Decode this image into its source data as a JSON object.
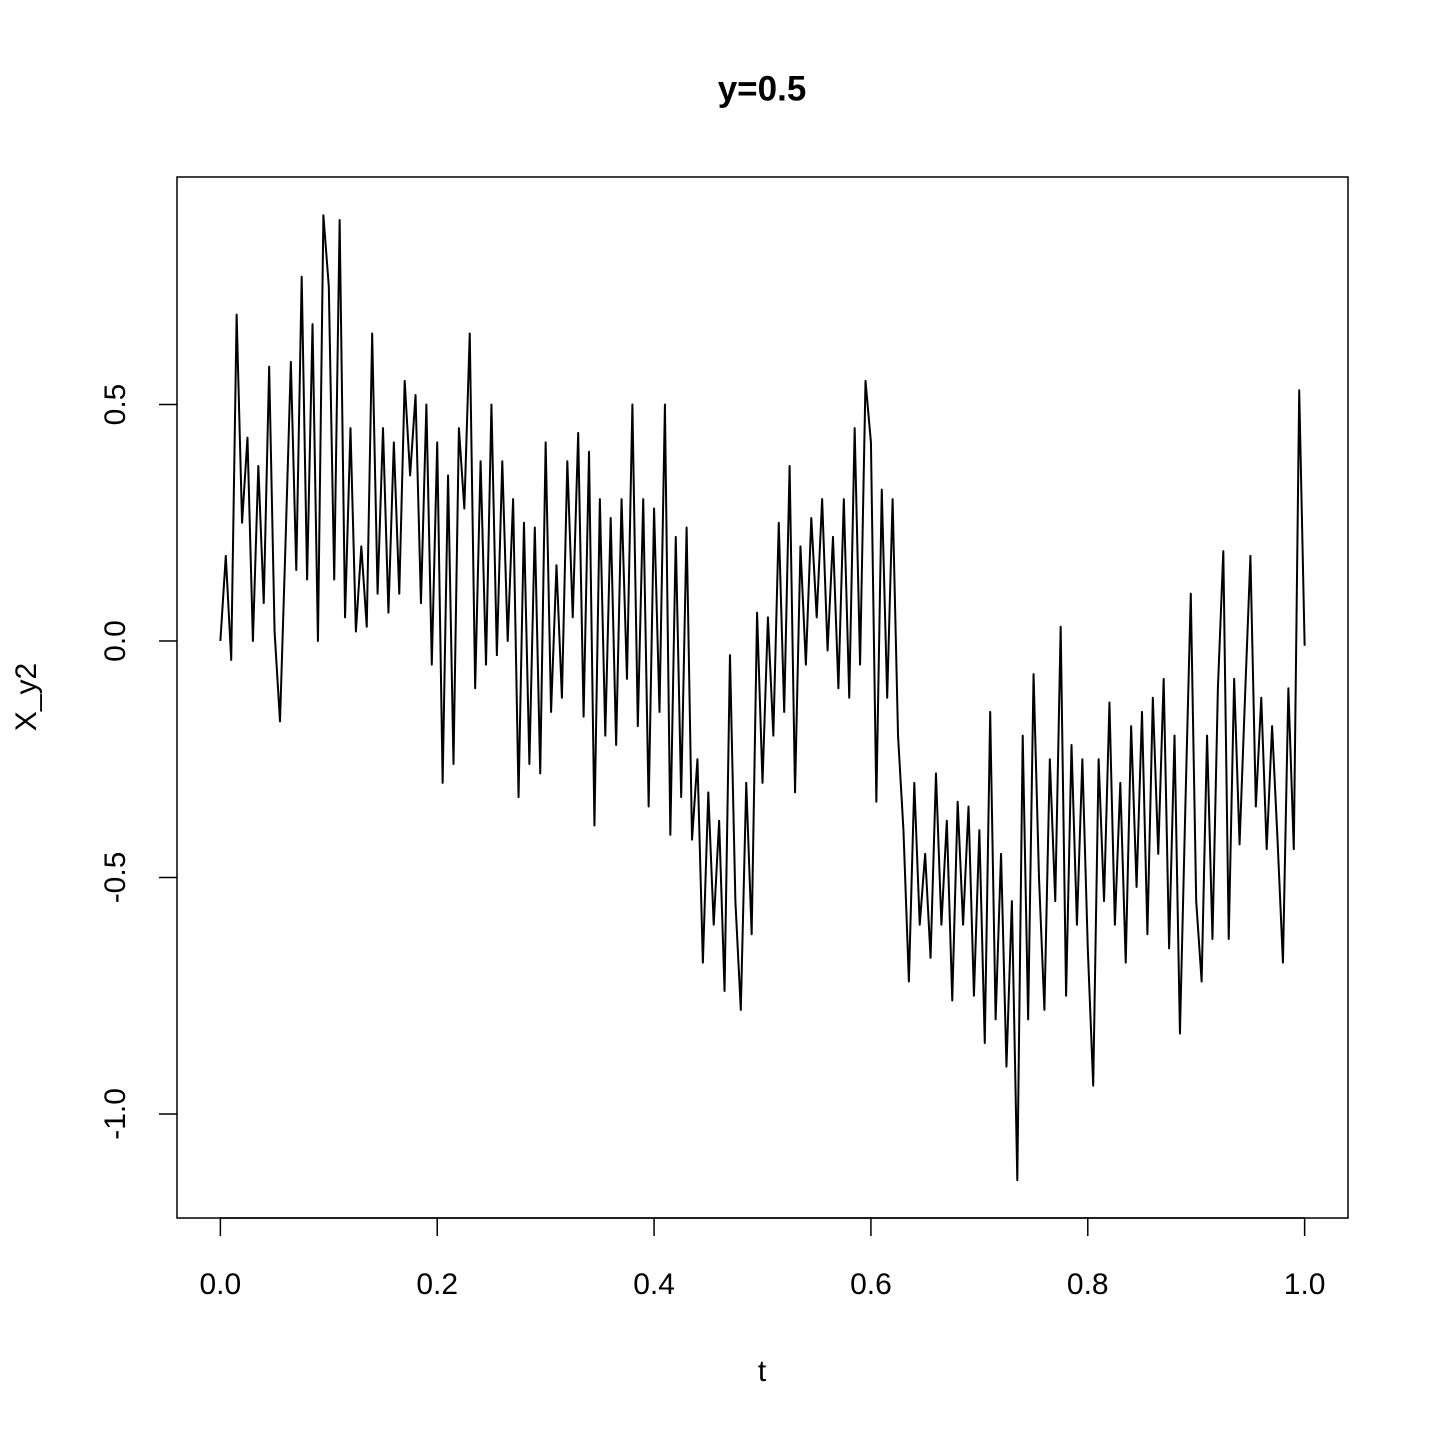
{
  "chart_data": {
    "type": "line",
    "title": "y=0.5",
    "x_label": "t",
    "y_label": "X_y2",
    "color": "#000000",
    "x": [
      0,
      0.005,
      0.01,
      0.015,
      0.02,
      0.025,
      0.03,
      0.035,
      0.04,
      0.045,
      0.05,
      0.055,
      0.06,
      0.065,
      0.07,
      0.075,
      0.08,
      0.085,
      0.09,
      0.095,
      0.1,
      0.105,
      0.11,
      0.115,
      0.12,
      0.125,
      0.13,
      0.135,
      0.14,
      0.145,
      0.15,
      0.155,
      0.16,
      0.165,
      0.17,
      0.175,
      0.18,
      0.185,
      0.19,
      0.195,
      0.2,
      0.205,
      0.21,
      0.215,
      0.22,
      0.225,
      0.23,
      0.235,
      0.24,
      0.245,
      0.25,
      0.255,
      0.26,
      0.265,
      0.27,
      0.275,
      0.28,
      0.285,
      0.29,
      0.295,
      0.3,
      0.305,
      0.31,
      0.315,
      0.32,
      0.325,
      0.33,
      0.335,
      0.34,
      0.345,
      0.35,
      0.355,
      0.36,
      0.365,
      0.37,
      0.375,
      0.38,
      0.385,
      0.39,
      0.395,
      0.4,
      0.405,
      0.41,
      0.415,
      0.42,
      0.425,
      0.43,
      0.435,
      0.44,
      0.445,
      0.45,
      0.455,
      0.46,
      0.465,
      0.47,
      0.475,
      0.48,
      0.485,
      0.49,
      0.495,
      0.5,
      0.505,
      0.51,
      0.515,
      0.52,
      0.525,
      0.53,
      0.535,
      0.54,
      0.545,
      0.55,
      0.555,
      0.56,
      0.565,
      0.57,
      0.575,
      0.58,
      0.585,
      0.59,
      0.595,
      0.6,
      0.605,
      0.61,
      0.615,
      0.62,
      0.625,
      0.63,
      0.635,
      0.64,
      0.645,
      0.65,
      0.655,
      0.66,
      0.665,
      0.67,
      0.675,
      0.68,
      0.685,
      0.69,
      0.695,
      0.7,
      0.705,
      0.71,
      0.715,
      0.72,
      0.725,
      0.73,
      0.735,
      0.74,
      0.745,
      0.75,
      0.755,
      0.76,
      0.765,
      0.77,
      0.775,
      0.78,
      0.785,
      0.79,
      0.795,
      0.8,
      0.805,
      0.81,
      0.815,
      0.82,
      0.825,
      0.83,
      0.835,
      0.84,
      0.845,
      0.85,
      0.855,
      0.86,
      0.865,
      0.87,
      0.875,
      0.88,
      0.885,
      0.89,
      0.895,
      0.9,
      0.905,
      0.91,
      0.915,
      0.92,
      0.925,
      0.93,
      0.935,
      0.94,
      0.945,
      0.95,
      0.955,
      0.96,
      0.965,
      0.97,
      0.975,
      0.98,
      0.985,
      0.99,
      0.995,
      1
    ],
    "values": [
      0,
      0.18,
      -0.04,
      0.69,
      0.25,
      0.43,
      0.0,
      0.37,
      0.08,
      0.58,
      0.02,
      -0.17,
      0.2,
      0.59,
      0.15,
      0.77,
      0.13,
      0.67,
      0.0,
      0.9,
      0.75,
      0.13,
      0.89,
      0.05,
      0.45,
      0.02,
      0.2,
      0.03,
      0.65,
      0.1,
      0.45,
      0.06,
      0.42,
      0.1,
      0.55,
      0.35,
      0.52,
      0.08,
      0.5,
      -0.05,
      0.42,
      -0.3,
      0.35,
      -0.26,
      0.45,
      0.28,
      0.65,
      -0.1,
      0.38,
      -0.05,
      0.5,
      -0.03,
      0.38,
      0.0,
      0.3,
      -0.33,
      0.25,
      -0.26,
      0.24,
      -0.28,
      0.42,
      -0.15,
      0.16,
      -0.12,
      0.38,
      0.05,
      0.44,
      -0.16,
      0.4,
      -0.39,
      0.3,
      -0.2,
      0.26,
      -0.22,
      0.3,
      -0.08,
      0.5,
      -0.18,
      0.3,
      -0.35,
      0.28,
      -0.15,
      0.5,
      -0.41,
      0.22,
      -0.33,
      0.24,
      -0.42,
      -0.25,
      -0.68,
      -0.32,
      -0.6,
      -0.38,
      -0.74,
      -0.03,
      -0.55,
      -0.78,
      -0.3,
      -0.62,
      0.06,
      -0.3,
      0.05,
      -0.2,
      0.25,
      -0.15,
      0.37,
      -0.32,
      0.2,
      -0.05,
      0.26,
      0.05,
      0.3,
      -0.02,
      0.22,
      -0.1,
      0.3,
      -0.12,
      0.45,
      -0.05,
      0.55,
      0.42,
      -0.34,
      0.32,
      -0.12,
      0.3,
      -0.2,
      -0.4,
      -0.72,
      -0.3,
      -0.6,
      -0.45,
      -0.67,
      -0.28,
      -0.6,
      -0.38,
      -0.76,
      -0.34,
      -0.6,
      -0.35,
      -0.75,
      -0.4,
      -0.85,
      -0.15,
      -0.8,
      -0.45,
      -0.9,
      -0.55,
      -1.14,
      -0.2,
      -0.8,
      -0.07,
      -0.5,
      -0.78,
      -0.25,
      -0.55,
      0.03,
      -0.75,
      -0.22,
      -0.6,
      -0.25,
      -0.65,
      -0.94,
      -0.25,
      -0.55,
      -0.13,
      -0.6,
      -0.3,
      -0.68,
      -0.18,
      -0.52,
      -0.15,
      -0.62,
      -0.12,
      -0.45,
      -0.08,
      -0.65,
      -0.2,
      -0.83,
      -0.35,
      0.1,
      -0.55,
      -0.72,
      -0.2,
      -0.63,
      -0.1,
      0.19,
      -0.63,
      -0.08,
      -0.43,
      -0.12,
      0.18,
      -0.35,
      -0.12,
      -0.44,
      -0.18,
      -0.42,
      -0.68,
      -0.1,
      -0.44,
      0.53,
      -0.01
    ],
    "xlim": [
      -0.04,
      1.04
    ],
    "ylim": [
      -1.22,
      0.981
    ],
    "xticks": [
      {
        "value": 0,
        "label": "0.0"
      },
      0.2,
      0.4,
      0.6,
      0.8,
      {
        "value": 1,
        "label": "1.0"
      }
    ],
    "yticks": [
      {
        "value": -1,
        "label": "-1.0"
      },
      -0.5,
      {
        "value": 0,
        "label": "0.0"
      },
      0.5
    ]
  }
}
